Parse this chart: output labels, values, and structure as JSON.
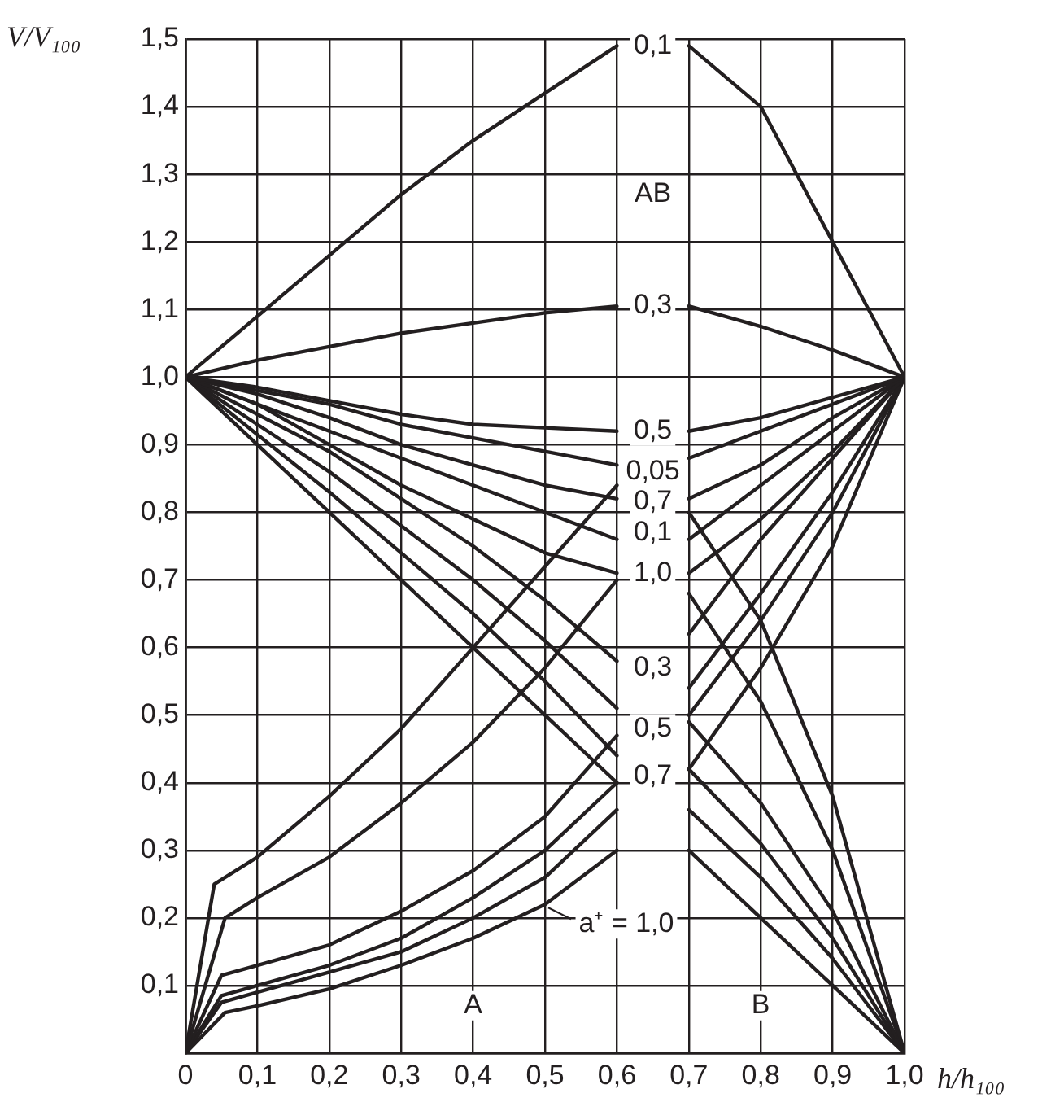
{
  "chart_data": {
    "type": "line",
    "xlabel": "h/h₁₀₀",
    "ylabel": "V/V₁₀₀",
    "xlim": [
      0,
      1
    ],
    "ylim": [
      0,
      1.5
    ],
    "xticks": [
      0,
      {
        "value": 0.1,
        "label": "0,1"
      },
      {
        "value": 0.2,
        "label": "0,2"
      },
      {
        "value": 0.3,
        "label": "0,3"
      },
      {
        "value": 0.4,
        "label": "0,4"
      },
      {
        "value": 0.5,
        "label": "0,5"
      },
      {
        "value": 0.6,
        "label": "0,6"
      },
      {
        "value": 0.7,
        "label": "0,7"
      },
      {
        "value": 0.8,
        "label": "0,8"
      },
      {
        "value": 0.9,
        "label": "0,9"
      },
      {
        "value": 1,
        "label": "1,0"
      }
    ],
    "yticks": [
      {
        "value": 0.1,
        "label": "0,1"
      },
      {
        "value": 0.2,
        "label": "0,2"
      },
      {
        "value": 0.3,
        "label": "0,3"
      },
      {
        "value": 0.4,
        "label": "0,4"
      },
      {
        "value": 0.5,
        "label": "0,5"
      },
      {
        "value": 0.6,
        "label": "0,6"
      },
      {
        "value": 0.7,
        "label": "0,7"
      },
      {
        "value": 0.8,
        "label": "0,8"
      },
      {
        "value": 0.9,
        "label": "0,9"
      },
      {
        "value": 1,
        "label": "1,0"
      },
      {
        "value": 1.1,
        "label": "1,1"
      },
      {
        "value": 1.2,
        "label": "1,2"
      },
      {
        "value": 1.3,
        "label": "1,3"
      },
      {
        "value": 1.4,
        "label": "1,4"
      },
      {
        "value": 1.5,
        "label": "1,5"
      }
    ],
    "grid": true,
    "marker": "none",
    "line_style": "solid",
    "series": [
      {
        "color": "#231f20",
        "x": [
          0,
          0.1,
          0.2,
          0.3,
          0.4,
          0.5,
          0.6,
          0.65,
          0.7,
          0.8,
          0.9,
          1
        ],
        "values": [
          1,
          1.09,
          1.18,
          1.27,
          1.35,
          1.42,
          1.49,
          null,
          1.49,
          1.4,
          1.2,
          1
        ]
      },
      {
        "color": "#231f20",
        "x": [
          0,
          0.1,
          0.2,
          0.3,
          0.4,
          0.5,
          0.6,
          0.65,
          0.7,
          0.8,
          0.9,
          1
        ],
        "values": [
          1,
          1.025,
          1.045,
          1.065,
          1.08,
          1.095,
          1.105,
          null,
          1.105,
          1.075,
          1.04,
          1
        ]
      },
      {
        "color": "#231f20",
        "x": [
          0,
          0.1,
          0.2,
          0.3,
          0.4,
          0.5,
          0.6,
          0.65,
          0.7,
          0.8,
          0.9,
          1
        ],
        "values": [
          1,
          0.985,
          0.965,
          0.945,
          0.93,
          0.925,
          0.92,
          null,
          0.92,
          0.94,
          0.97,
          1
        ]
      },
      {
        "color": "#231f20",
        "x": [
          0,
          0.1,
          0.2,
          0.3,
          0.4,
          0.5,
          0.6,
          0.65,
          0.7,
          0.8,
          0.9,
          1
        ],
        "values": [
          1,
          0.975,
          0.94,
          0.9,
          0.87,
          0.84,
          0.82,
          null,
          0.82,
          0.87,
          0.94,
          1
        ]
      },
      {
        "color": "#231f20",
        "x": [
          0,
          0.1,
          0.2,
          0.3,
          0.4,
          0.5,
          0.6,
          0.65,
          0.7,
          0.8,
          0.9,
          1
        ],
        "values": [
          1,
          0.96,
          0.9,
          0.84,
          0.79,
          0.74,
          0.71,
          null,
          0.71,
          0.79,
          0.89,
          1
        ]
      },
      {
        "color": "#231f20",
        "x": [
          0,
          0.04,
          0.1,
          0.2,
          0.3,
          0.4,
          0.5,
          0.6,
          0.65,
          0.7,
          0.8,
          0.9,
          1
        ],
        "values": [
          0,
          0.25,
          0.29,
          0.38,
          0.48,
          0.6,
          0.72,
          0.84,
          null,
          0.88,
          0.92,
          0.96,
          1
        ]
      },
      {
        "color": "#231f20",
        "x": [
          0,
          0.055,
          0.1,
          0.2,
          0.3,
          0.4,
          0.5,
          0.6,
          0.65,
          0.7,
          0.8,
          0.9,
          1
        ],
        "values": [
          0,
          0.2,
          0.23,
          0.29,
          0.37,
          0.46,
          0.57,
          0.7,
          null,
          0.76,
          0.84,
          0.92,
          1
        ]
      },
      {
        "color": "#231f20",
        "x": [
          0,
          0.05,
          0.1,
          0.2,
          0.3,
          0.4,
          0.5,
          0.6,
          0.65,
          0.7,
          0.8,
          0.9,
          1
        ],
        "values": [
          0,
          0.115,
          0.13,
          0.16,
          0.21,
          0.27,
          0.35,
          0.47,
          null,
          0.62,
          0.76,
          0.88,
          1
        ]
      },
      {
        "color": "#231f20",
        "x": [
          0,
          0.05,
          0.1,
          0.2,
          0.3,
          0.4,
          0.5,
          0.6,
          0.65,
          0.7,
          0.8,
          0.9,
          1
        ],
        "values": [
          0,
          0.085,
          0.1,
          0.13,
          0.17,
          0.23,
          0.3,
          0.4,
          null,
          0.54,
          0.68,
          0.83,
          1
        ]
      },
      {
        "color": "#231f20",
        "x": [
          0,
          0.05,
          0.1,
          0.2,
          0.3,
          0.4,
          0.5,
          0.6,
          0.65,
          0.7,
          0.8,
          0.9,
          1
        ],
        "values": [
          0,
          0.075,
          0.09,
          0.12,
          0.15,
          0.2,
          0.26,
          0.36,
          null,
          0.5,
          0.64,
          0.8,
          1
        ]
      },
      {
        "color": "#231f20",
        "x": [
          0,
          0.055,
          0.1,
          0.2,
          0.3,
          0.4,
          0.5,
          0.6,
          0.65,
          0.7,
          0.8,
          0.9,
          1
        ],
        "values": [
          0,
          0.06,
          0.07,
          0.095,
          0.13,
          0.17,
          0.22,
          0.3,
          null,
          0.42,
          0.57,
          0.75,
          1
        ]
      },
      {
        "color": "#231f20",
        "x": [
          0,
          0.1,
          0.2,
          0.3,
          0.4,
          0.5,
          0.6,
          0.65,
          0.7,
          0.8,
          0.9,
          1
        ],
        "values": [
          1,
          0.98,
          0.96,
          0.93,
          0.91,
          0.89,
          0.87,
          null,
          0.8,
          0.64,
          0.38,
          0
        ]
      },
      {
        "color": "#231f20",
        "x": [
          0,
          0.1,
          0.2,
          0.3,
          0.4,
          0.5,
          0.6,
          0.65,
          0.7,
          0.8,
          0.9,
          1
        ],
        "values": [
          1,
          0.96,
          0.92,
          0.88,
          0.84,
          0.8,
          0.76,
          null,
          0.68,
          0.52,
          0.3,
          0
        ]
      },
      {
        "color": "#231f20",
        "x": [
          0,
          0.1,
          0.2,
          0.3,
          0.4,
          0.5,
          0.6,
          0.65,
          0.7,
          0.8,
          0.9,
          1
        ],
        "values": [
          1,
          0.945,
          0.89,
          0.82,
          0.75,
          0.67,
          0.58,
          null,
          0.49,
          0.37,
          0.21,
          0
        ]
      },
      {
        "color": "#231f20",
        "x": [
          0,
          0.1,
          0.2,
          0.3,
          0.4,
          0.5,
          0.6,
          0.65,
          0.7,
          0.8,
          0.9,
          1
        ],
        "values": [
          1,
          0.93,
          0.86,
          0.78,
          0.7,
          0.61,
          0.51,
          null,
          0.42,
          0.31,
          0.17,
          0
        ]
      },
      {
        "color": "#231f20",
        "x": [
          0,
          0.1,
          0.2,
          0.3,
          0.4,
          0.5,
          0.6,
          0.65,
          0.7,
          0.8,
          0.9,
          1
        ],
        "values": [
          1,
          0.915,
          0.83,
          0.74,
          0.65,
          0.55,
          0.44,
          null,
          0.36,
          0.26,
          0.14,
          0
        ]
      },
      {
        "color": "#231f20",
        "x": [
          0,
          0.1,
          0.2,
          0.3,
          0.4,
          0.5,
          0.6,
          0.65,
          0.7,
          0.8,
          0.9,
          1
        ],
        "values": [
          1,
          0.9,
          0.8,
          0.7,
          0.6,
          0.5,
          0.4,
          null,
          0.3,
          0.2,
          0.1,
          0
        ]
      }
    ],
    "annotations": [
      {
        "text": "0,1",
        "x": 0.65,
        "y": 1.49
      },
      {
        "text": "AB",
        "x": 0.65,
        "y": 1.27
      },
      {
        "text": "0,3",
        "x": 0.65,
        "y": 1.105
      },
      {
        "text": "0,5",
        "x": 0.65,
        "y": 0.92
      },
      {
        "text": "0,05",
        "x": 0.65,
        "y": 0.86
      },
      {
        "text": "0,7",
        "x": 0.65,
        "y": 0.815
      },
      {
        "text": "0,1",
        "x": 0.65,
        "y": 0.77
      },
      {
        "text": "1,0",
        "x": 0.65,
        "y": 0.71
      },
      {
        "text": "0,3",
        "x": 0.65,
        "y": 0.57
      },
      {
        "text": "0,5",
        "x": 0.65,
        "y": 0.48
      },
      {
        "text": "0,7",
        "x": 0.65,
        "y": 0.41
      },
      {
        "text": "a⁺ = 1,0",
        "x": 0.5,
        "y": 0.22
      },
      {
        "text": "A",
        "x": 0.4,
        "y": 0.07
      },
      {
        "text": "B",
        "x": 0.8,
        "y": 0.07
      }
    ]
  }
}
